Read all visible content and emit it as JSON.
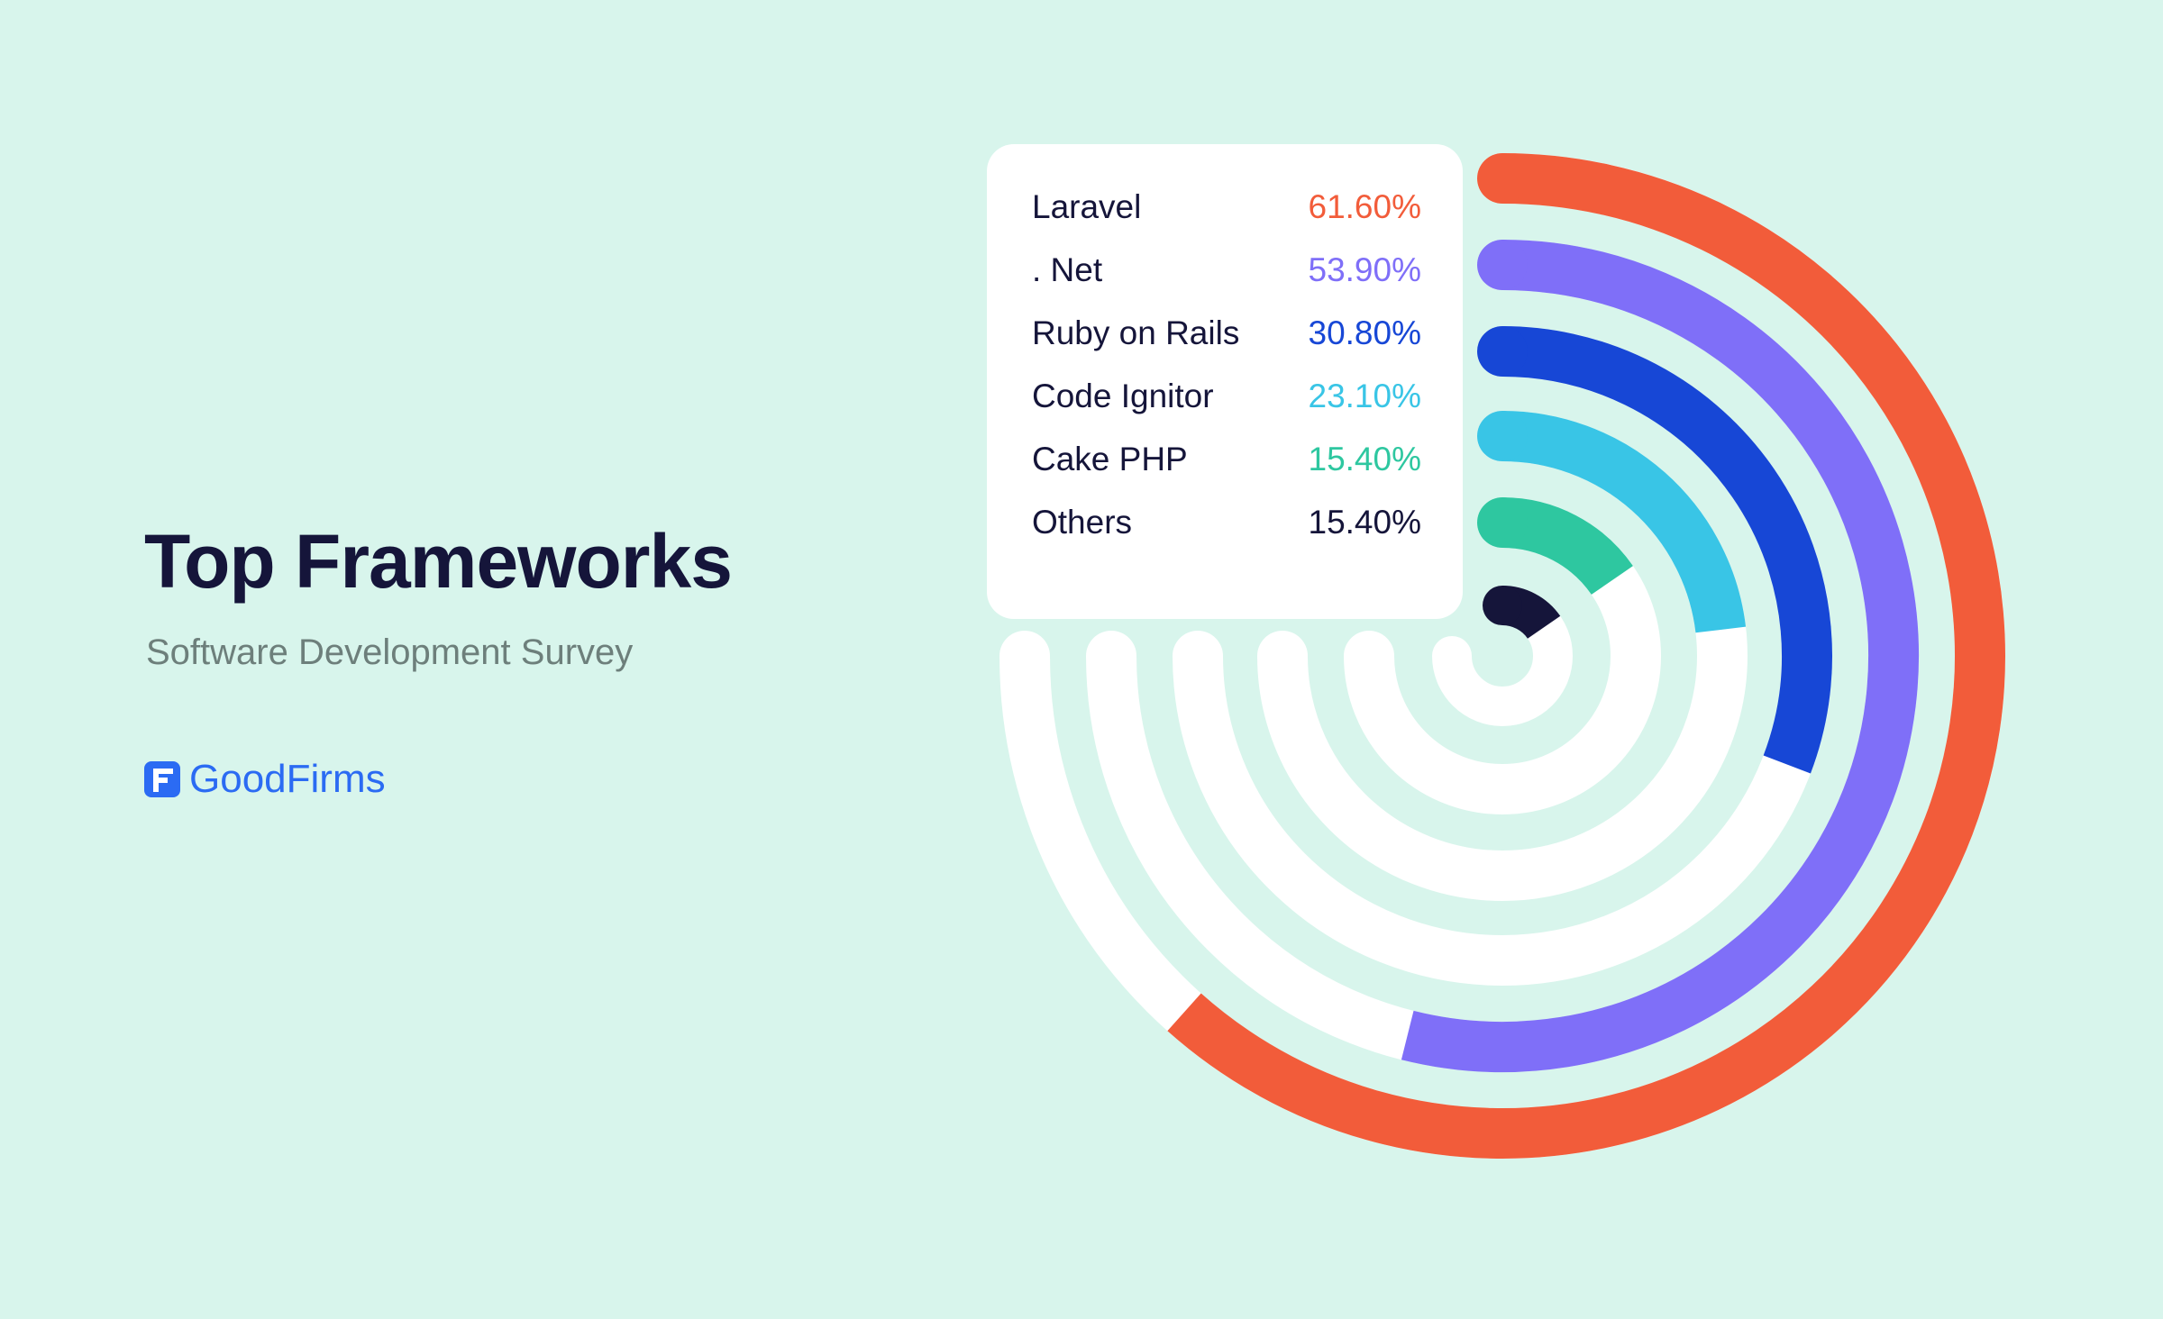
{
  "header": {
    "title": "Top Frameworks",
    "subtitle": "Software Development Survey"
  },
  "brand": {
    "name": "GoodFirms",
    "icon": "goodfirms-logo-icon",
    "color": "#2b6bf3"
  },
  "chart_data": {
    "type": "radial-bar",
    "title": "Top Frameworks",
    "subtitle": "Software Development Survey",
    "unit": "%",
    "max": 100,
    "series": [
      {
        "name": "Laravel",
        "value": 61.6,
        "label": "61.60%",
        "color": "#f25c3a"
      },
      {
        "name": ". Net",
        "value": 53.9,
        "label": "53.90%",
        "color": "#7f6ff8"
      },
      {
        "name": "Ruby on Rails",
        "value": 30.8,
        "label": "30.80%",
        "color": "#1747d6"
      },
      {
        "name": "Code Ignitor",
        "value": 23.1,
        "label": "23.10%",
        "color": "#39c5e6"
      },
      {
        "name": "Cake PHP",
        "value": 15.4,
        "label": "15.40%",
        "color": "#2ec7a0"
      },
      {
        "name": "Others",
        "value": 15.4,
        "label": "15.40%",
        "color": "#15153a"
      }
    ],
    "track_color": "#ffffff",
    "legend_position": "inside-top-left"
  },
  "colors": {
    "background": "#d8f5ec",
    "title": "#15153a",
    "subtitle": "#6d7f7b"
  }
}
